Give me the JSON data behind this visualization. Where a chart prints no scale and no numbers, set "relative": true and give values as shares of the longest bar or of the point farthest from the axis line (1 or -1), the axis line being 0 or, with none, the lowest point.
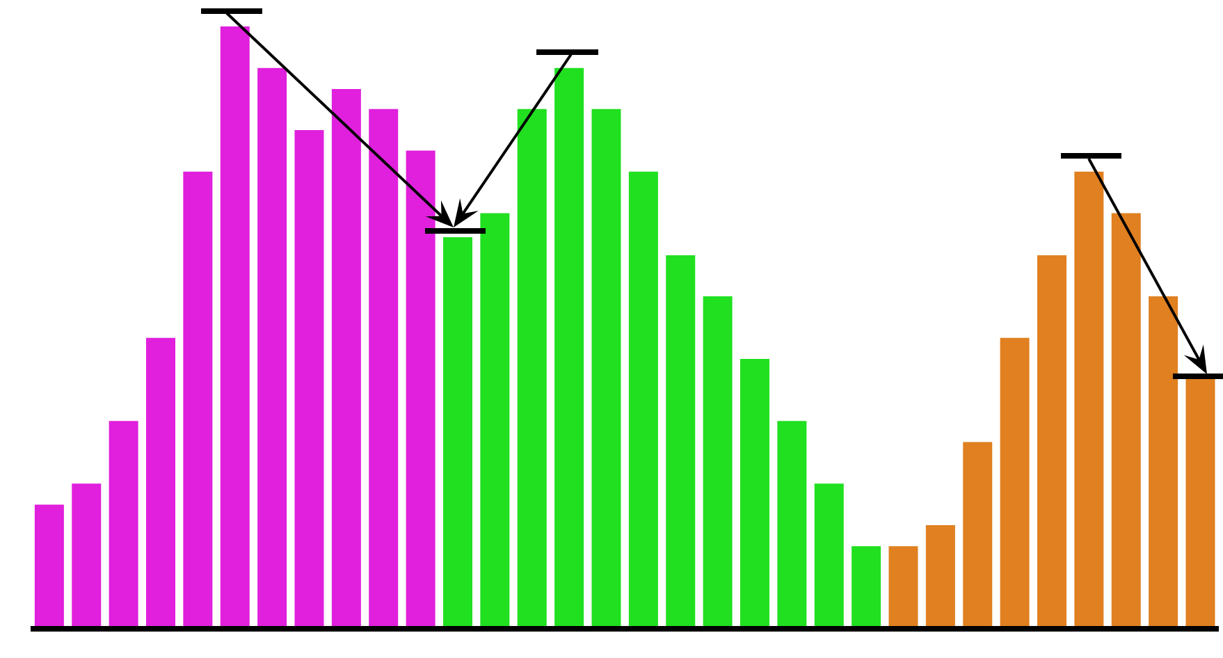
{
  "chart_data": {
    "type": "bar",
    "relative": true,
    "categories": [
      null,
      null,
      null,
      null,
      null,
      null,
      null,
      null,
      null,
      null,
      null,
      null,
      null,
      null,
      null,
      null,
      null,
      null,
      null,
      null,
      null,
      null,
      null,
      null,
      null,
      null,
      null,
      null,
      null,
      null,
      null,
      null
    ],
    "values": [
      0.206,
      0.241,
      0.345,
      0.483,
      0.759,
      1,
      0.931,
      0.828,
      0.896,
      0.863,
      0.794,
      0.65,
      0.69,
      0.863,
      0.931,
      0.863,
      0.759,
      0.62,
      0.552,
      0.448,
      0.345,
      0.241,
      0.137,
      0.137,
      0.172,
      0.31,
      0.483,
      0.62,
      0.759,
      0.69,
      0.552,
      0.415
    ],
    "colors": [
      "#e020dc",
      "#e020dc",
      "#e020dc",
      "#e020dc",
      "#e020dc",
      "#e020dc",
      "#e020dc",
      "#e020dc",
      "#e020dc",
      "#e020dc",
      "#e020dc",
      "#20e020",
      "#20e020",
      "#20e020",
      "#20e020",
      "#20e020",
      "#20e020",
      "#20e020",
      "#20e020",
      "#20e020",
      "#20e020",
      "#20e020",
      "#20e020",
      "#e08020",
      "#e08020",
      "#e08020",
      "#e08020",
      "#e08020",
      "#e08020",
      "#e08020",
      "#e08020",
      "#e08020"
    ],
    "grid": false,
    "legend": false
  }
}
